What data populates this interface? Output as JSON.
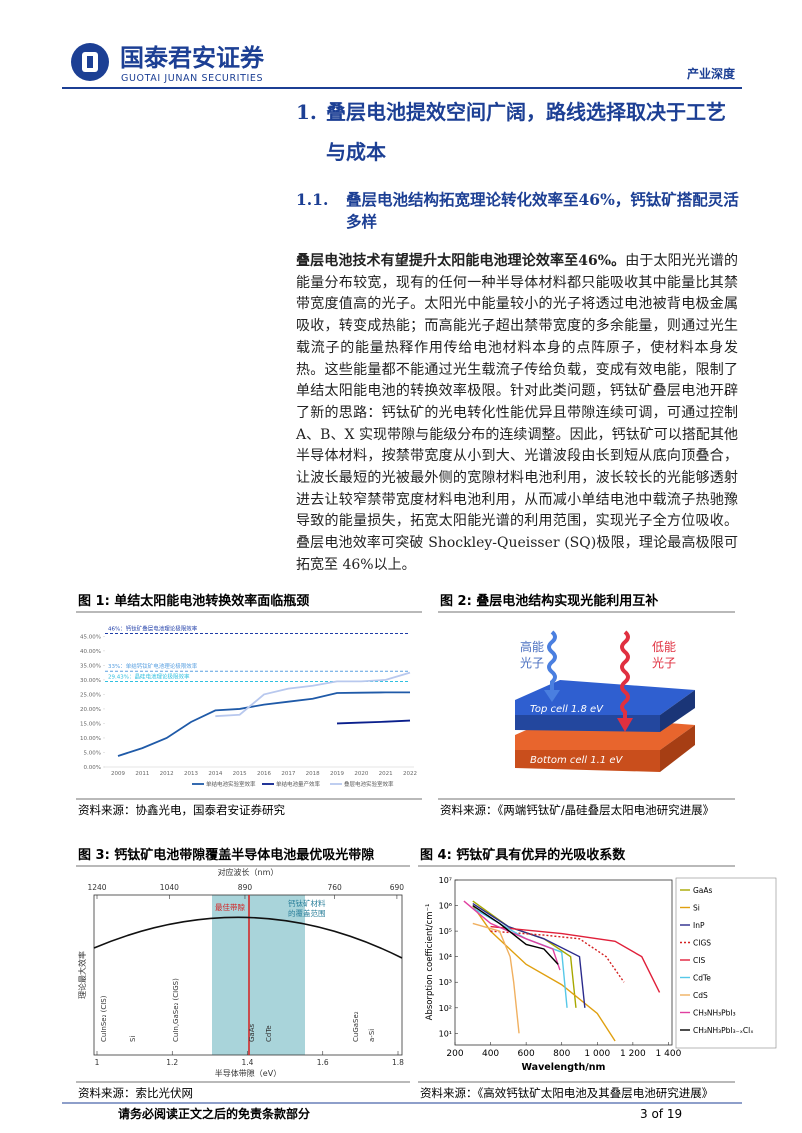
{
  "header": {
    "company": "国泰君安证券",
    "company_en": "GUOTAI JUNAN SECURITIES",
    "report_type": "产业深度"
  },
  "section": {
    "number": "1.",
    "title": "叠层电池提效空间广阔，路线选择取决于工艺与成本"
  },
  "subsection": {
    "number": "1.1.",
    "title": "叠层电池结构拓宽理论转化效率至46%，钙钛矿搭配灵活多样"
  },
  "paragraph": {
    "lead": "叠层电池技术有望提升太阳能电池理论效率至46%。",
    "body": "由于太阳光光谱的能量分布较宽，现有的任何一种半导体材料都只能吸收其中能量比其禁带宽度值高的光子。太阳光中能量较小的光子将透过电池被背电极金属吸收，转变成热能；而高能光子超出禁带宽度的多余能量，则通过光生载流子的能量热释作用传给电池材料本身的点阵原子，使材料本身发热。这些能量都不能通过光生载流子传给负载，变成有效电能，限制了单结太阳能电池的转换效率极限。针对此类问题，钙钛矿叠层电池开辟了新的思路：钙钛矿的光电转化性能优异且带隙连续可调，可通过控制 A、B、X 实现带隙与能级分布的连续调整。因此，钙钛矿可以搭配其他半导体材料，按禁带宽度从小到大、光谱波段由长到短从底向顶叠合，让波长最短的光被最外侧的宽隙材料电池利用，波长较长的光能够透射进去让较窄禁带宽度材料电池利用，从而减小单结电池中载流子热驰豫导致的能量损失，拓宽太阳能光谱的利用范围，实现光子全方位吸收。叠层电池效率可突破 Shockley-Queisser (SQ)极限，理论最高极限可拓宽至 46%以上。"
  },
  "figures": {
    "fig1": {
      "caption": "图 1: 单结太阳能电池转换效率面临瓶颈",
      "source": "资料来源：协鑫光电，国泰君安证券研究",
      "type": "line",
      "categories": [
        "2009",
        "2011",
        "2012",
        "2013",
        "2014",
        "2015",
        "2016",
        "2017",
        "2018",
        "2019",
        "2020",
        "2021",
        "2022"
      ],
      "ylim": [
        0,
        46.5
      ],
      "yticks": [
        {
          "value": 0,
          "label": "0.00%"
        },
        {
          "value": 5,
          "label": "5.00%"
        },
        {
          "value": 10,
          "label": "10.00%"
        },
        {
          "value": 15,
          "label": "15.00%"
        },
        {
          "value": 20,
          "label": "20.00%"
        },
        {
          "value": 25,
          "label": "25.00%"
        },
        {
          "value": 30,
          "label": "30.00%"
        },
        {
          "value": 35,
          "label": "35.00%"
        },
        {
          "value": 40,
          "label": "40.00%"
        },
        {
          "value": 45,
          "label": "45.00%"
        }
      ],
      "series": [
        {
          "name": "单结电池实验室效率",
          "color": "#1f5aa8",
          "values": [
            3.8,
            6.5,
            10,
            15.5,
            19.5,
            20,
            21.5,
            22.5,
            23.5,
            25.5,
            25.6,
            25.7,
            25.7
          ]
        },
        {
          "name": "单结电池量产效率",
          "color": "#0a1f8c",
          "values": [
            null,
            null,
            null,
            null,
            null,
            null,
            null,
            null,
            null,
            15,
            15.3,
            15.6,
            16
          ]
        },
        {
          "name": "叠层电池实验室效率",
          "color": "#b8c8ee",
          "values": [
            null,
            null,
            null,
            null,
            17.5,
            18,
            25,
            27,
            28,
            29.5,
            29.5,
            30,
            32.5
          ]
        }
      ],
      "reference_lines": [
        {
          "value": 46,
          "label": "46%：钙钛矿叠层电池理论极限效率",
          "color": "#1f3da8"
        },
        {
          "value": 33,
          "label": "33%：单结钙钛矿电池理论极限效率",
          "color": "#5aa0e0"
        },
        {
          "value": 29.43,
          "label": "29.43%：晶硅电池理论极限效率",
          "color": "#30c0e0"
        }
      ]
    },
    "fig2": {
      "caption": "图 2: 叠层电池结构实现光能利用互补",
      "source": "资料来源：《两端钙钛矿/晶硅叠层太阳电池研究进展》",
      "high_energy": [
        "高能",
        "光子"
      ],
      "low_energy": [
        "低能",
        "光子"
      ],
      "top_cell": "Top cell 1.8 eV",
      "bottom_cell": "Bottom cell 1.1 eV"
    },
    "fig3": {
      "caption": "图 3: 钙钛矿电池带隙覆盖半导体电池最优吸光带隙",
      "source": "资料来源：索比光伏网",
      "top_axis_title": "对应波长（nm）",
      "top_ticks": [
        1240,
        1040,
        890,
        760,
        690
      ],
      "xlabel": "半导体带隙（eV）",
      "xlim": [
        1,
        1.8
      ],
      "xticks": [
        1,
        1.2,
        1.4,
        1.6,
        1.8
      ],
      "ylabel": "理论最大效率",
      "optimal_label": "最佳带隙",
      "perovskite_label": [
        "钙钛矿材料",
        "的覆盖范围"
      ],
      "materials": [
        "CuInSe₂ (CIS)",
        "Si",
        "CuIn,GaSe₂ (CIGS)",
        "GaAs",
        "CdTe",
        "CuGaSe₂",
        "a-Si"
      ]
    },
    "fig4": {
      "caption": "图 4: 钙钛矿具有优异的光吸收系数",
      "source": "资料来源：《高效钙钛矿太阳电池及其叠层电池研究进展》",
      "type": "line",
      "log_y": true,
      "xlabel": "Wavelength/nm",
      "ylabel": "Absorption coefficient/cm⁻¹",
      "xlim": [
        200,
        1420
      ],
      "xticks": [
        200,
        400,
        600,
        800,
        {
          "value": 1000,
          "label": "1 000"
        },
        {
          "value": 1200,
          "label": "1 200"
        },
        {
          "value": 1400,
          "label": "1 400"
        }
      ],
      "ylim": [
        3.5,
        10000000
      ],
      "yticks": [
        {
          "value": 10,
          "label": "10¹"
        },
        {
          "value": 100,
          "label": "10²"
        },
        {
          "value": 1000,
          "label": "10³"
        },
        {
          "value": 10000,
          "label": "10⁴"
        },
        {
          "value": 100000,
          "label": "10⁵"
        },
        {
          "value": 1000000,
          "label": "10⁶"
        },
        {
          "value": 10000000,
          "label": "10⁷"
        }
      ],
      "series": [
        {
          "name": "GaAs",
          "color": "#a8a800",
          "x": [
            300,
            500,
            700,
            850,
            880
          ],
          "values": [
            1500000,
            150000,
            50000,
            10000,
            100
          ]
        },
        {
          "name": "Si",
          "color": "#e0a010",
          "x": [
            300,
            400,
            600,
            800,
            1000,
            1100
          ],
          "values": [
            1000000,
            100000,
            5000,
            800,
            60,
            5
          ]
        },
        {
          "name": "InP",
          "color": "#2b2b8c",
          "x": [
            300,
            500,
            700,
            900,
            930
          ],
          "values": [
            1200000,
            150000,
            50000,
            10000,
            100
          ]
        },
        {
          "name": "CIGS",
          "color": "#d42020",
          "dashed": true,
          "x": [
            400,
            700,
            900,
            1050,
            1150
          ],
          "values": [
            100000,
            70000,
            50000,
            10000,
            1000
          ]
        },
        {
          "name": "CIS",
          "color": "#e0203a",
          "x": [
            400,
            800,
            1100,
            1250,
            1350
          ],
          "values": [
            150000,
            80000,
            40000,
            10000,
            400
          ]
        },
        {
          "name": "CdTe",
          "color": "#56c8e8",
          "x": [
            300,
            600,
            800,
            830
          ],
          "values": [
            800000,
            50000,
            15000,
            100
          ]
        },
        {
          "name": "CdS",
          "color": "#f0b060",
          "x": [
            300,
            450,
            510,
            530,
            560
          ],
          "values": [
            200000,
            100000,
            10000,
            1000,
            10
          ]
        },
        {
          "name": "CH₃NH₃PbI₃",
          "color": "#e040a0",
          "x": [
            250,
            400,
            600,
            750,
            790
          ],
          "values": [
            1500000,
            200000,
            50000,
            20000,
            3000
          ]
        },
        {
          "name": "CH₃NH₃PbI₃₋ₓClₓ",
          "color": "#000000",
          "x": [
            300,
            450,
            600,
            700,
            780
          ],
          "values": [
            1000000,
            200000,
            30000,
            20000,
            5000
          ]
        }
      ]
    }
  },
  "footer": {
    "disclaimer": "请务必阅读正文之后的免责条款部分",
    "page": "3 of 19"
  }
}
